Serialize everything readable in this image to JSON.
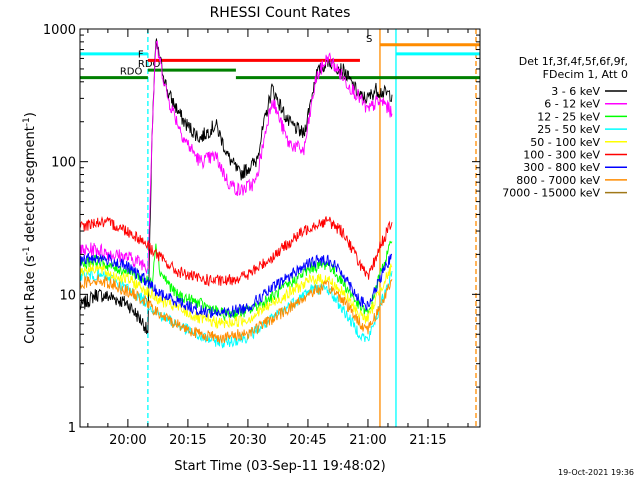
{
  "chart_data": {
    "type": "line",
    "title": "RHESSI Count Rates",
    "xlabel": "Start Time (03-Sep-11 19:48:02)",
    "ylabel_main": "Count Rate (s",
    "ylabel_sup1": "-1",
    "ylabel_mid": " detector segment",
    "ylabel_sup2": "-1",
    "ylabel_end": ")",
    "y_scale": "log",
    "ylim": [
      1,
      1000
    ],
    "xlim": [
      "19:48:02",
      "21:28"
    ],
    "x_ticks": [
      "20:00",
      "20:15",
      "20:30",
      "20:45",
      "21:00",
      "21:15"
    ],
    "y_ticks": [
      "1",
      "10",
      "100",
      "1000"
    ],
    "legend_header": [
      "Det 1f,3f,4f,5f,6f,9f,",
      "FDecim 1, Att 0"
    ],
    "timestamp": "19-Oct-2021 19:36",
    "series": [
      {
        "name": "3 - 6 keV",
        "color": "#000000",
        "times": [
          "19:48",
          "19:52",
          "19:56",
          "20:00",
          "20:04",
          "20:05",
          "20:06",
          "20:07",
          "20:10",
          "20:14",
          "20:18",
          "20:22",
          "20:25",
          "20:28",
          "20:32",
          "20:36",
          "20:40",
          "20:44",
          "20:47",
          "20:50",
          "20:54",
          "20:58",
          "21:00",
          "21:02",
          "21:04",
          "21:06"
        ],
        "values": [
          8.0,
          10.0,
          9.5,
          8.5,
          6.0,
          5.0,
          150,
          800,
          330,
          200,
          150,
          190,
          110,
          80,
          100,
          360,
          200,
          160,
          450,
          580,
          480,
          310,
          300,
          350,
          330,
          320
        ]
      },
      {
        "name": "6 - 12 keV",
        "color": "#ff00ff",
        "times": [
          "19:48",
          "19:52",
          "19:56",
          "20:00",
          "20:04",
          "20:05",
          "20:06",
          "20:07",
          "20:10",
          "20:14",
          "20:18",
          "20:22",
          "20:25",
          "20:28",
          "20:32",
          "20:36",
          "20:40",
          "20:44",
          "20:47",
          "20:50",
          "20:54",
          "20:58",
          "21:00",
          "21:02",
          "21:04",
          "21:06"
        ],
        "values": [
          21,
          22,
          20,
          19,
          17,
          16,
          150,
          800,
          300,
          150,
          100,
          110,
          70,
          60,
          70,
          300,
          140,
          120,
          420,
          620,
          420,
          300,
          240,
          280,
          280,
          230
        ]
      },
      {
        "name": "12 - 25 keV",
        "color": "#00ff00",
        "times": [
          "19:48",
          "19:52",
          "19:56",
          "20:00",
          "20:04",
          "20:06",
          "20:07",
          "20:08",
          "20:12",
          "20:18",
          "20:24",
          "20:30",
          "20:36",
          "20:42",
          "20:46",
          "20:50",
          "20:54",
          "20:58",
          "21:00",
          "21:03",
          "21:06"
        ],
        "values": [
          17,
          18,
          16,
          15,
          13,
          12,
          25,
          15,
          10,
          8.5,
          7.0,
          7.5,
          9.5,
          13,
          16,
          17,
          12,
          8.0,
          7.0,
          14,
          25
        ]
      },
      {
        "name": "25 - 50 keV",
        "color": "#00ffff",
        "times": [
          "19:48",
          "19:52",
          "19:56",
          "20:00",
          "20:04",
          "20:08",
          "20:12",
          "20:18",
          "20:24",
          "20:30",
          "20:36",
          "20:42",
          "20:46",
          "20:50",
          "20:54",
          "20:58",
          "21:00",
          "21:03",
          "21:06"
        ],
        "values": [
          14,
          14,
          13,
          11,
          9,
          7,
          6,
          4.8,
          4.3,
          4.8,
          6.5,
          9,
          11,
          11,
          7.5,
          5,
          4.5,
          8,
          15
        ]
      },
      {
        "name": "50 - 100 keV",
        "color": "#ffff00",
        "times": [
          "19:48",
          "19:52",
          "19:56",
          "20:00",
          "20:04",
          "20:08",
          "20:12",
          "20:18",
          "20:24",
          "20:30",
          "20:36",
          "20:42",
          "20:46",
          "20:50",
          "20:54",
          "20:58",
          "21:00",
          "21:03",
          "21:06"
        ],
        "values": [
          15,
          16,
          14,
          13,
          11,
          9,
          8,
          6.5,
          6,
          6.5,
          8.5,
          11,
          13,
          13,
          10,
          7,
          6.5,
          11,
          16
        ]
      },
      {
        "name": "100 - 300 keV",
        "color": "#ff0000",
        "times": [
          "19:48",
          "19:52",
          "19:56",
          "20:00",
          "20:04",
          "20:08",
          "20:12",
          "20:18",
          "20:24",
          "20:30",
          "20:36",
          "20:42",
          "20:46",
          "20:50",
          "20:54",
          "20:58",
          "21:00",
          "21:03",
          "21:06"
        ],
        "values": [
          32,
          35,
          34,
          30,
          25,
          19,
          15,
          13,
          12.5,
          14,
          19,
          27,
          33,
          36,
          29,
          17,
          13,
          23,
          35
        ]
      },
      {
        "name": "300 - 800 keV",
        "color": "#0000ff",
        "times": [
          "19:48",
          "19:52",
          "19:56",
          "20:00",
          "20:04",
          "20:08",
          "20:12",
          "20:18",
          "20:24",
          "20:30",
          "20:36",
          "20:42",
          "20:46",
          "20:50",
          "20:54",
          "20:58",
          "21:00",
          "21:03",
          "21:06"
        ],
        "values": [
          18,
          19,
          18,
          16,
          13,
          10,
          9,
          7.5,
          7.2,
          8,
          11,
          15,
          17.5,
          18.5,
          14,
          9,
          8,
          13,
          20
        ]
      },
      {
        "name": "800 - 7000 keV",
        "color": "#ff8c00",
        "times": [
          "19:48",
          "19:52",
          "19:56",
          "20:00",
          "20:04",
          "20:08",
          "20:12",
          "20:18",
          "20:24",
          "20:30",
          "20:36",
          "20:42",
          "20:46",
          "20:50",
          "20:54",
          "20:58",
          "21:00",
          "21:03",
          "21:06"
        ],
        "values": [
          12,
          13,
          12,
          10.5,
          9,
          7,
          6,
          5,
          4.7,
          5.1,
          6.5,
          8.5,
          10.5,
          11.5,
          9,
          6,
          5.5,
          8,
          13
        ]
      },
      {
        "name": "7000 - 15000 keV",
        "color": "#a07818",
        "times": [],
        "values": []
      }
    ],
    "state_bars": [
      {
        "label": "",
        "color": "#00ffff",
        "y": 650,
        "start": "19:48",
        "end": "20:05"
      },
      {
        "label": "RDO",
        "color": "#008000",
        "y": 430,
        "start": "19:48",
        "end": "20:05"
      },
      {
        "label": "RDO",
        "color": "#008000",
        "y": 490,
        "start": "20:05",
        "end": "20:27"
      },
      {
        "label": "",
        "color": "#008000",
        "y": 430,
        "start": "20:27",
        "end": "21:28"
      },
      {
        "label": "F",
        "color": "#ff0000",
        "y": 580,
        "start": "20:05",
        "end": "20:58"
      },
      {
        "label": "S",
        "color": "#ff8c00",
        "y": 760,
        "start": "21:03",
        "end": "21:28"
      },
      {
        "label": "",
        "color": "#00ffff",
        "y": 650,
        "start": "21:07",
        "end": "21:28"
      }
    ],
    "vertical_markers": [
      {
        "time": "20:05",
        "color": "#00ffff",
        "style": "dashed"
      },
      {
        "time": "21:03",
        "color": "#ff8c00",
        "style": "solid"
      },
      {
        "time": "21:07",
        "color": "#00ffff",
        "style": "solid"
      },
      {
        "time": "21:27",
        "color": "#ff8c00",
        "style": "dashed"
      }
    ],
    "grid": false,
    "legend_position": "right"
  }
}
